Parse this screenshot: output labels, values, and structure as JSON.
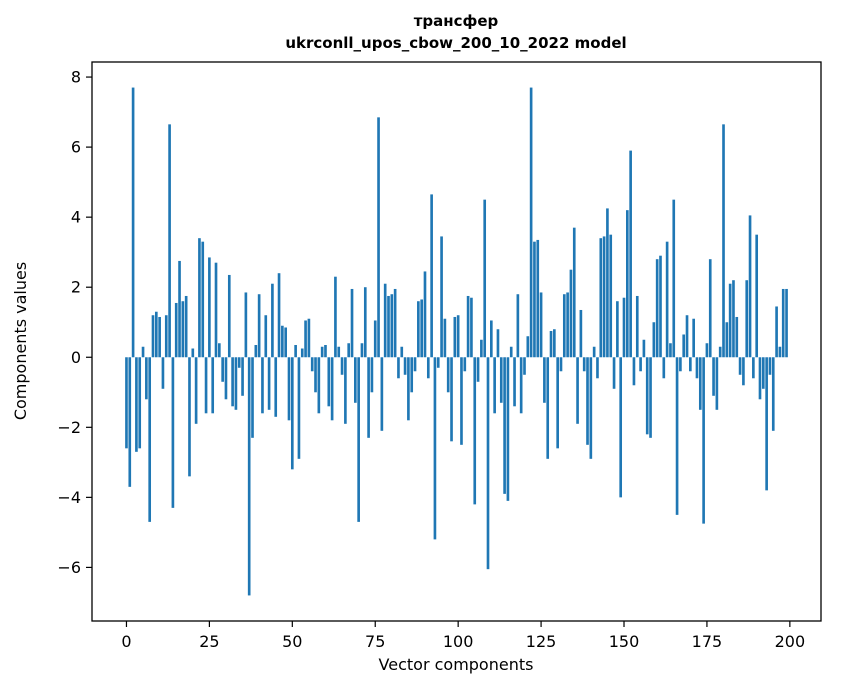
{
  "chart_data": {
    "type": "bar",
    "title": "трансфер",
    "subtitle": "ukrconll_upos_cbow_200_10_2022 model",
    "xlabel": "Vector components",
    "ylabel": "Components values",
    "bar_color": "#1f77b4",
    "spine_color": "#000000",
    "xlim": [
      -10.39,
      209.39
    ],
    "ylim": [
      -7.53,
      8.43
    ],
    "x_ticks": [
      0,
      25,
      50,
      75,
      100,
      125,
      150,
      175,
      200
    ],
    "y_ticks": [
      -6,
      -4,
      -2,
      0,
      2,
      4,
      6,
      8
    ],
    "grid": false,
    "legend": "none",
    "x": "index 0..199",
    "values": [
      -2.6,
      -3.7,
      7.7,
      -2.7,
      -2.6,
      0.3,
      -1.2,
      -4.7,
      1.2,
      1.3,
      1.15,
      -0.9,
      1.2,
      6.65,
      -4.3,
      1.55,
      2.75,
      1.6,
      1.75,
      -3.4,
      0.25,
      -1.9,
      3.4,
      3.3,
      -1.6,
      2.85,
      -1.6,
      2.7,
      0.4,
      -0.7,
      -1.2,
      2.35,
      -1.4,
      -1.5,
      -0.3,
      -1.1,
      1.85,
      -6.8,
      -2.3,
      0.35,
      1.8,
      -1.6,
      1.2,
      -1.5,
      2.1,
      -1.7,
      2.4,
      0.9,
      0.85,
      -1.8,
      -3.2,
      0.35,
      -2.9,
      0.25,
      1.05,
      1.1,
      -0.4,
      -1.0,
      -1.6,
      0.3,
      0.35,
      -1.4,
      -1.8,
      2.3,
      0.3,
      -0.5,
      -1.9,
      0.4,
      1.95,
      -1.3,
      -4.7,
      0.4,
      2.0,
      -2.3,
      -1.0,
      1.05,
      6.85,
      -2.1,
      2.1,
      1.75,
      1.8,
      1.95,
      -0.6,
      0.3,
      -0.5,
      -1.8,
      -1.0,
      -0.4,
      1.6,
      1.65,
      2.45,
      -0.6,
      4.65,
      -5.2,
      -0.3,
      3.45,
      1.1,
      -1.0,
      -2.4,
      1.15,
      1.2,
      -2.5,
      -0.4,
      1.75,
      1.7,
      -4.2,
      -0.7,
      0.5,
      4.5,
      -6.05,
      1.05,
      -1.6,
      0.8,
      -1.3,
      -3.9,
      -4.1,
      0.3,
      -1.4,
      1.8,
      -1.6,
      -0.5,
      0.6,
      7.7,
      3.3,
      3.35,
      1.85,
      -1.3,
      -2.9,
      0.75,
      0.8,
      -2.6,
      -0.4,
      1.8,
      1.85,
      2.5,
      3.7,
      -1.9,
      1.35,
      -0.4,
      -2.5,
      -2.9,
      0.3,
      -0.6,
      3.4,
      3.45,
      4.25,
      3.5,
      -0.9,
      1.6,
      -4.0,
      1.7,
      4.2,
      5.9,
      -0.8,
      1.75,
      -0.4,
      0.5,
      -2.2,
      -2.3,
      1.0,
      2.8,
      2.9,
      -0.6,
      3.3,
      0.4,
      4.5,
      -4.5,
      -0.4,
      0.65,
      1.2,
      -0.4,
      1.1,
      -0.6,
      -1.5,
      -4.75,
      0.4,
      2.8,
      -1.1,
      -1.5,
      0.3,
      6.65,
      1.0,
      2.1,
      2.2,
      1.15,
      -0.5,
      -0.8,
      2.2,
      4.05,
      -0.6,
      3.5,
      -1.2,
      -0.9,
      -3.8,
      -0.5,
      -2.1,
      1.45,
      0.3,
      1.95,
      1.95
    ]
  }
}
